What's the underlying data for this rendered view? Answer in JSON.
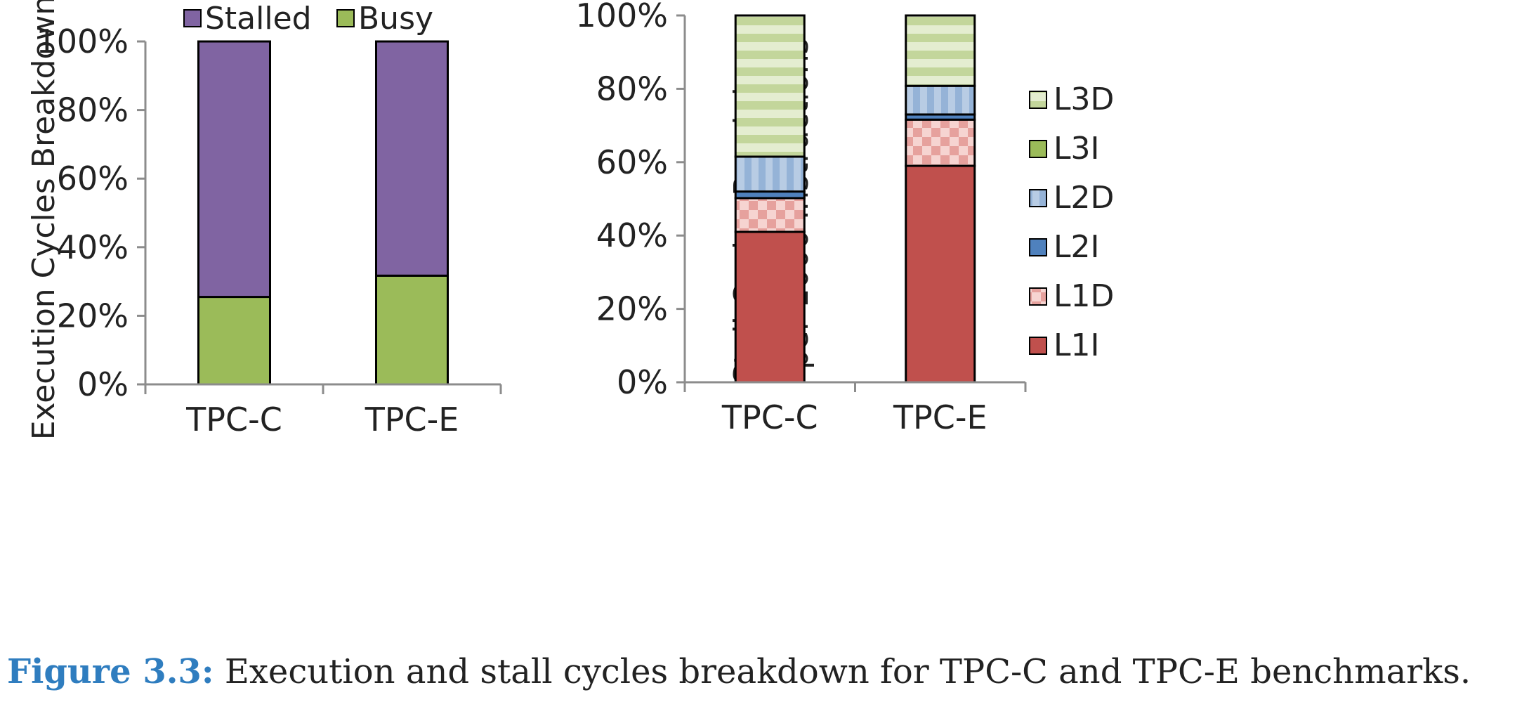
{
  "chart_data": [
    {
      "type": "bar",
      "stacked": true,
      "categories": [
        "TPC-C",
        "TPC-E"
      ],
      "series": [
        {
          "name": "Busy",
          "values": [
            25.5,
            31.7
          ],
          "color": "#9bbb59"
        },
        {
          "name": "Stalled",
          "values": [
            74.5,
            68.3
          ],
          "color": "#8064a2"
        }
      ],
      "legend": [
        "Stalled",
        "Busy"
      ],
      "legend_position": "top",
      "ylabel": "Execution Cycles Breakdown",
      "ylim": [
        0,
        100
      ],
      "yticks": [
        "0%",
        "20%",
        "40%",
        "60%",
        "80%",
        "100%"
      ],
      "grid": false
    },
    {
      "type": "bar",
      "stacked": true,
      "categories": [
        "TPC-C",
        "TPC-E"
      ],
      "series": [
        {
          "name": "L1I",
          "values": [
            41,
            59
          ],
          "color": "#c0504d",
          "pattern": "solid"
        },
        {
          "name": "L1D",
          "values": [
            9.2,
            12.6
          ],
          "color": "#e6a19d",
          "pattern": "checker"
        },
        {
          "name": "L2I",
          "values": [
            1.8,
            1.4
          ],
          "color": "#4f81bd",
          "pattern": "solid"
        },
        {
          "name": "L2D",
          "values": [
            9.5,
            7.8
          ],
          "color": "#95b3d7",
          "pattern": "vertical-stripes"
        },
        {
          "name": "L3I",
          "values": [
            0,
            0
          ],
          "color": "#9bbb59",
          "pattern": "solid"
        },
        {
          "name": "L3D",
          "values": [
            38.5,
            19.2
          ],
          "color": "#c3d69b",
          "pattern": "horizontal-stripes"
        }
      ],
      "legend": [
        "L3D",
        "L3I",
        "L2D",
        "L2I",
        "L1D",
        "L1I"
      ],
      "legend_position": "right",
      "ylabel_lines": [
        "Stall Cycles Breakdown",
        "per 1000 Instructions"
      ],
      "ylim": [
        0,
        100
      ],
      "yticks": [
        "0%",
        "20%",
        "40%",
        "60%",
        "80%",
        "100%"
      ],
      "grid": false
    }
  ],
  "caption": {
    "label": "Figure 3.3:",
    "text": "Execution and stall cycles breakdown for TPC-C and TPC-E benchmarks."
  }
}
